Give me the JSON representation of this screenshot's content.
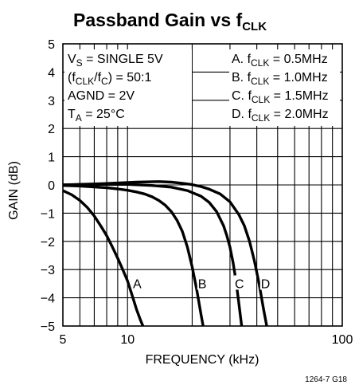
{
  "chart_data": {
    "type": "line",
    "title_main": "Passband Gain vs f",
    "title_sub": "CLK",
    "xlabel": "FREQUENCY (kHz)",
    "ylabel": "GAIN (dB)",
    "xscale": "log",
    "xlim": [
      5,
      100
    ],
    "ylim": [
      -5,
      5
    ],
    "x_ticks": [
      5,
      10,
      100
    ],
    "x_tick_labels": [
      "5",
      "10",
      "100"
    ],
    "y_ticks": [
      5,
      4,
      3,
      2,
      1,
      0,
      -1,
      -2,
      -3,
      -4,
      -5
    ],
    "y_tick_labels": [
      "5",
      "4",
      "3",
      "2",
      "1",
      "0",
      "−1",
      "−2",
      "−3",
      "−4",
      "−5"
    ],
    "grid": true,
    "conditions": [
      {
        "pre": "V",
        "sub": "S",
        "post": " = SINGLE 5V"
      },
      {
        "pre": "(f",
        "sub": "CLK",
        "mid": "/f",
        "sub2": "C",
        "post": ") = 50:1"
      },
      {
        "pre": "AGND = 2V"
      },
      {
        "pre": "T",
        "sub": "A",
        "post": " = 25°C"
      }
    ],
    "legend": [
      {
        "pre": "A. f",
        "sub": "CLK",
        "post": " = 0.5MHz"
      },
      {
        "pre": "B. f",
        "sub": "CLK",
        "post": " = 1.0MHz"
      },
      {
        "pre": "C. f",
        "sub": "CLK",
        "post": " = 1.5MHz"
      },
      {
        "pre": "D. f",
        "sub": "CLK",
        "post": " = 2.0MHz"
      }
    ],
    "series": [
      {
        "name": "A",
        "x": [
          5,
          5.5,
          6,
          6.5,
          7,
          7.5,
          8,
          8.5,
          9,
          9.5,
          10,
          10.5,
          11,
          11.5,
          11.8
        ],
        "y": [
          -0.2,
          -0.35,
          -0.55,
          -0.8,
          -1.1,
          -1.45,
          -1.8,
          -2.2,
          -2.6,
          -3.0,
          -3.4,
          -3.9,
          -4.4,
          -4.8,
          -5.0
        ]
      },
      {
        "name": "B",
        "x": [
          5,
          6,
          7,
          8,
          9,
          10,
          11,
          12,
          13,
          14,
          15,
          16,
          17,
          18,
          19,
          20,
          21,
          22,
          22.5
        ],
        "y": [
          -0.02,
          -0.04,
          -0.07,
          -0.1,
          -0.14,
          -0.19,
          -0.25,
          -0.32,
          -0.42,
          -0.55,
          -0.72,
          -0.95,
          -1.25,
          -1.65,
          -2.2,
          -2.9,
          -3.7,
          -4.6,
          -5.0
        ]
      },
      {
        "name": "C",
        "x": [
          5,
          7,
          10,
          13,
          16,
          19,
          22,
          24,
          26,
          28,
          29,
          30,
          31,
          32,
          33,
          34
        ],
        "y": [
          0,
          0.02,
          0.02,
          -0.02,
          -0.08,
          -0.2,
          -0.4,
          -0.62,
          -0.95,
          -1.45,
          -1.8,
          -2.2,
          -2.75,
          -3.4,
          -4.2,
          -5.0
        ]
      },
      {
        "name": "D",
        "x": [
          5,
          8,
          11,
          14,
          16,
          18,
          20,
          22,
          24,
          27,
          30,
          33,
          35,
          37,
          39,
          41,
          43,
          44.5
        ],
        "y": [
          0,
          0.05,
          0.1,
          0.12,
          0.1,
          0.06,
          0.01,
          -0.06,
          -0.15,
          -0.32,
          -0.6,
          -1.05,
          -1.45,
          -2.0,
          -2.7,
          -3.5,
          -4.4,
          -5.0
        ]
      }
    ],
    "curve_labels": [
      {
        "name": "A",
        "x": 10.6,
        "y": -3.6
      },
      {
        "name": "B",
        "x": 21.3,
        "y": -3.6
      },
      {
        "name": "C",
        "x": 31.6,
        "y": -3.6
      },
      {
        "name": "D",
        "x": 41.8,
        "y": -3.6
      }
    ],
    "figure_number": "1264-7 G18"
  }
}
